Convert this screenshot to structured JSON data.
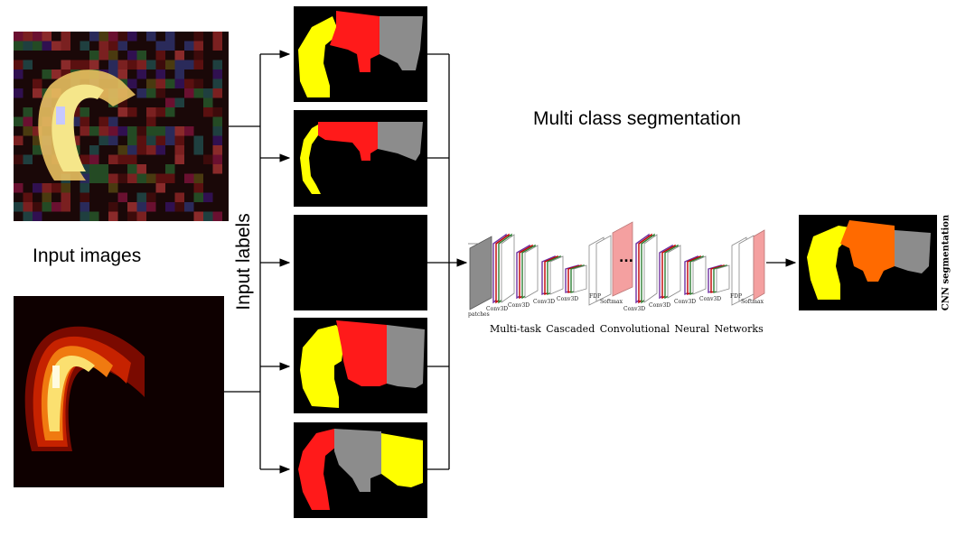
{
  "title": "Multi class segmentation",
  "input_images_label": "Input images",
  "input_labels_label": "Input labels",
  "network_caption": "Multi-task  Cascaded  Convolutional  Neural  Networks",
  "output_label": "CNN segmentation",
  "network_layer_labels": [
    "patches",
    "Conv3D",
    "Conv3D",
    "Conv3D",
    "Conv3D",
    "FDP",
    "Softmax",
    "Conv3D",
    "Conv3D",
    "Conv3D",
    "Conv3D",
    "FDP",
    "Softmax"
  ],
  "ellipsis": "...",
  "colors": {
    "yellow": "#ffff00",
    "red": "#ff1a1a",
    "gray": "#8c8c8c",
    "orange": "#ff6a00",
    "black": "#000000",
    "pink": "#f4a0a0"
  },
  "icons": [
    "arrow-icon"
  ]
}
